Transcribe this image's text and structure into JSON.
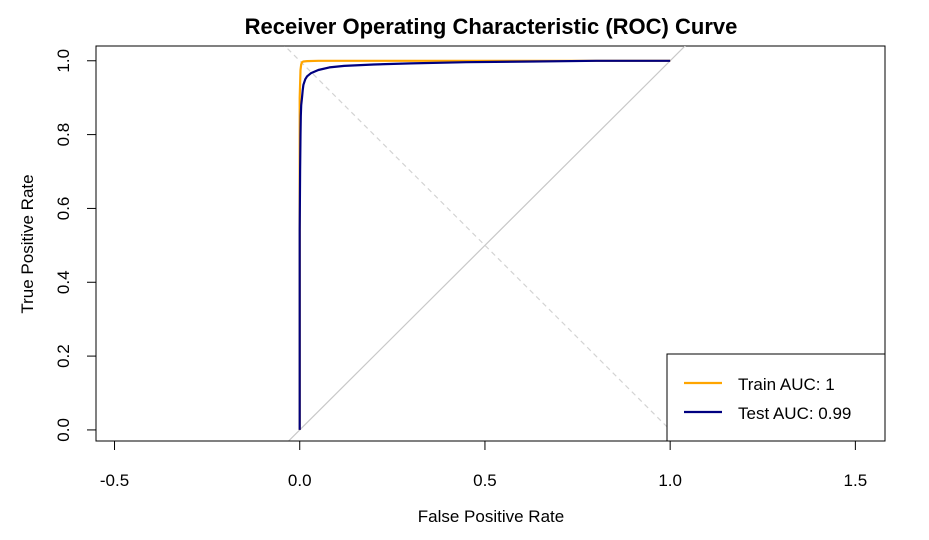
{
  "chart_data": {
    "type": "line",
    "title": "Receiver Operating Characteristic (ROC) Curve",
    "xlabel": "False Positive Rate",
    "ylabel": "True Positive Rate",
    "xlim": [
      -0.55,
      1.58
    ],
    "ylim": [
      -0.03,
      1.04
    ],
    "x_ticks": [
      -0.5,
      0.0,
      0.5,
      1.0,
      1.5
    ],
    "x_tick_labels": [
      "-0.5",
      "0.0",
      "0.5",
      "1.0",
      "1.5"
    ],
    "y_ticks": [
      0.0,
      0.2,
      0.4,
      0.6,
      0.8,
      1.0
    ],
    "y_tick_labels": [
      "0.0",
      "0.2",
      "0.4",
      "0.6",
      "0.8",
      "1.0"
    ],
    "legend_position": "bottom-right",
    "series": [
      {
        "name": "Train AUC: 1",
        "color": "#FFA500",
        "x": [
          0.0,
          0.0,
          0.0,
          0.002,
          0.004,
          0.006,
          0.01,
          0.02,
          0.05,
          0.1,
          0.3,
          0.6,
          1.0
        ],
        "y": [
          0.0,
          0.5,
          0.9,
          0.975,
          0.99,
          0.996,
          0.998,
          0.999,
          1.0,
          1.0,
          1.0,
          1.0,
          1.0
        ]
      },
      {
        "name": "Test AUC: 0.99",
        "color": "#000080",
        "x": [
          0.0,
          0.0,
          0.001,
          0.002,
          0.003,
          0.004,
          0.006,
          0.008,
          0.01,
          0.015,
          0.02,
          0.03,
          0.05,
          0.08,
          0.12,
          0.2,
          0.3,
          0.45,
          0.63,
          0.8,
          1.0
        ],
        "y": [
          0.0,
          0.54,
          0.7,
          0.8,
          0.85,
          0.88,
          0.9,
          0.92,
          0.935,
          0.95,
          0.958,
          0.966,
          0.975,
          0.982,
          0.986,
          0.99,
          0.993,
          0.996,
          0.998,
          1.0,
          1.0
        ]
      }
    ],
    "reference_lines": [
      {
        "name": "diagonal",
        "color": "#c8c8c8",
        "style": "solid",
        "x": [
          -0.05,
          1.05
        ],
        "y": [
          -0.05,
          1.05
        ]
      },
      {
        "name": "anti-diagonal",
        "color": "#d3d3d3",
        "style": "dashed",
        "x": [
          -0.05,
          1.05
        ],
        "y": [
          1.05,
          -0.05
        ]
      }
    ]
  }
}
